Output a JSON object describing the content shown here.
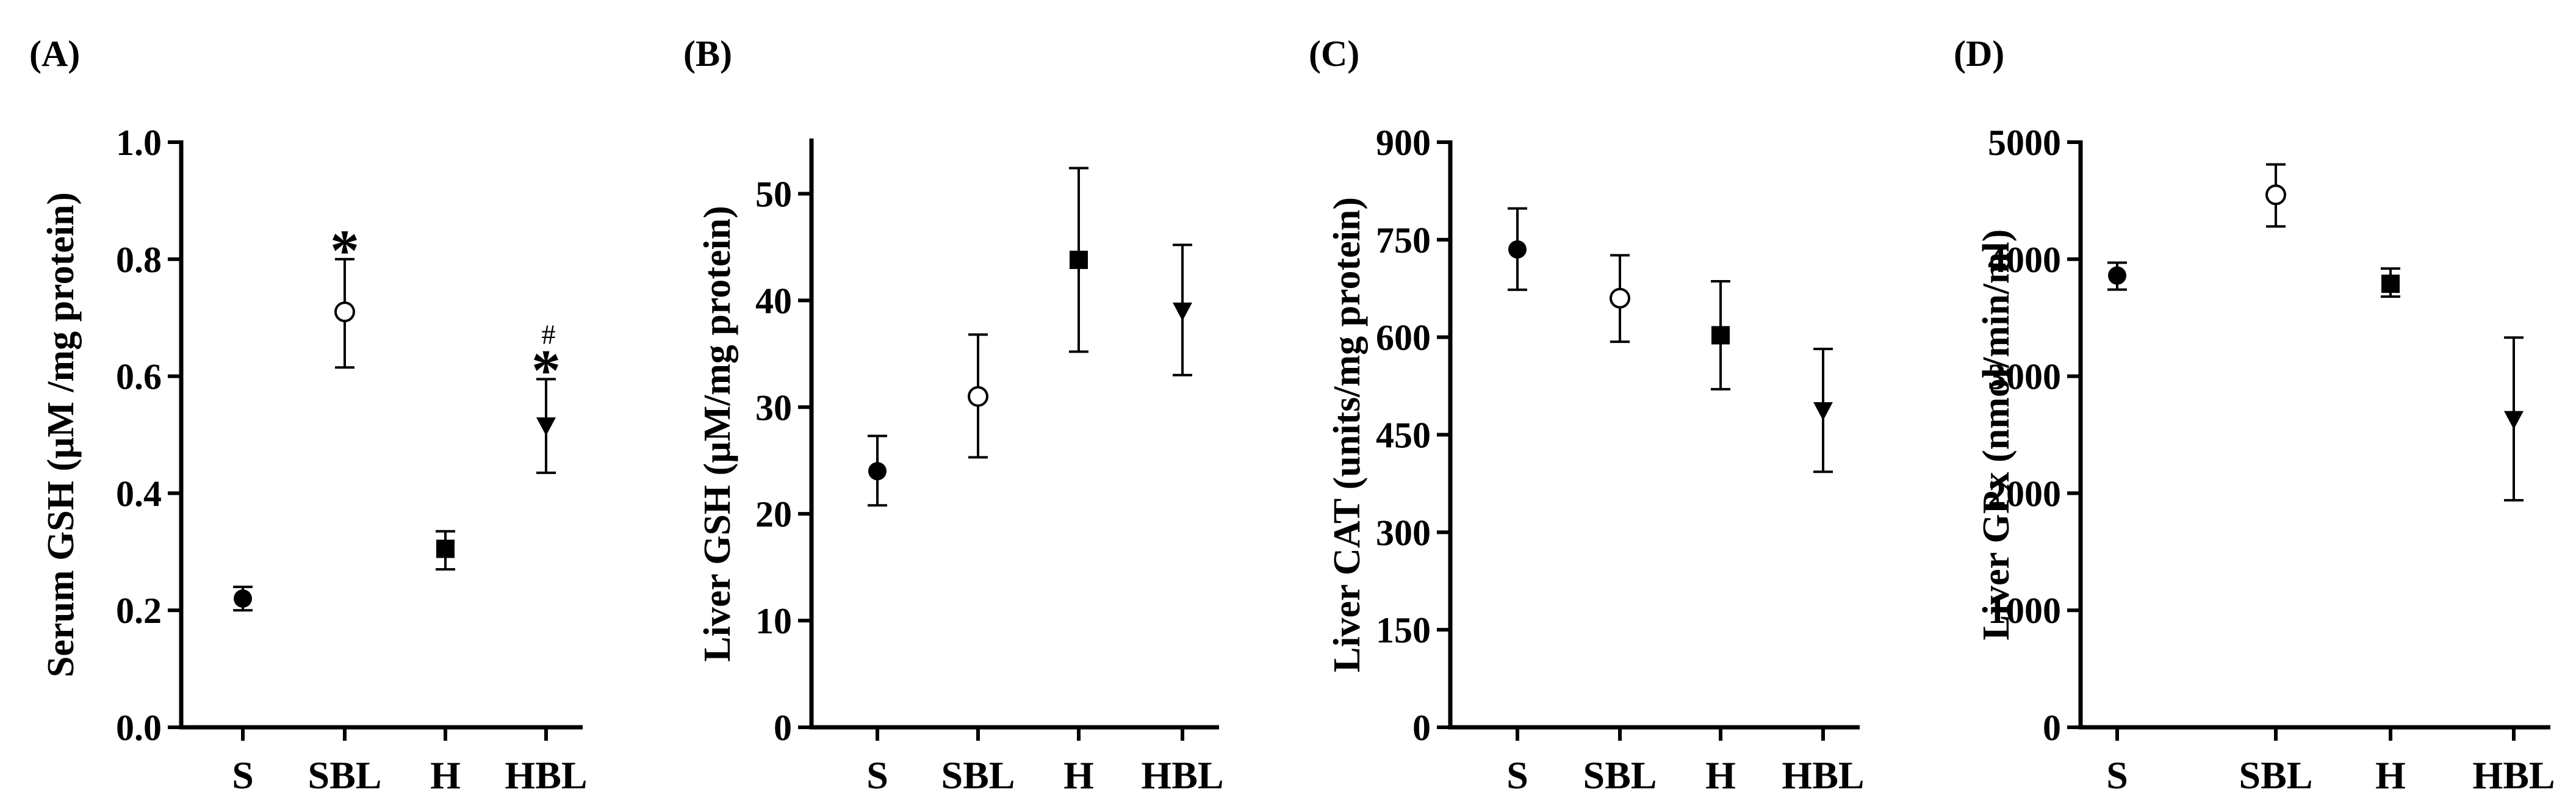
{
  "chart_data": [
    {
      "type": "scatter",
      "panel": "(A)",
      "ylabel": "Serum GSH (μM /mg protein)",
      "ylim": [
        0,
        1.0
      ],
      "yticks": [
        0.0,
        0.2,
        0.4,
        0.6,
        0.8,
        1.0
      ],
      "ytick_labels": [
        "0.0",
        "0.2",
        "0.4",
        "0.6",
        "0.8",
        "1.0"
      ],
      "categories": [
        "S",
        "SBL",
        "H",
        "HBL"
      ],
      "points": [
        {
          "category": "S",
          "value": 0.22,
          "err_low": 0.2,
          "err_high": 0.24,
          "marker": "circle-filled",
          "annotation": ""
        },
        {
          "category": "SBL",
          "value": 0.71,
          "err_low": 0.615,
          "err_high": 0.8,
          "marker": "circle-open",
          "annotation": "*"
        },
        {
          "category": "H",
          "value": 0.305,
          "err_low": 0.27,
          "err_high": 0.335,
          "marker": "square-filled",
          "annotation": ""
        },
        {
          "category": "HBL",
          "value": 0.515,
          "err_low": 0.435,
          "err_high": 0.595,
          "marker": "triangle-down-filled",
          "annotation": "*#"
        }
      ]
    },
    {
      "type": "scatter",
      "panel": "(B)",
      "ylabel": "Liver GSH (μM/mg protein)",
      "ylim": [
        0,
        55
      ],
      "yticks": [
        0,
        10,
        20,
        30,
        40,
        50
      ],
      "ytick_labels": [
        "0",
        "10",
        "20",
        "30",
        "40",
        "50"
      ],
      "categories": [
        "S",
        "SBL",
        "H",
        "HBL"
      ],
      "points": [
        {
          "category": "S",
          "value": 24,
          "err_low": 20.8,
          "err_high": 27.3,
          "marker": "circle-filled",
          "annotation": ""
        },
        {
          "category": "SBL",
          "value": 31,
          "err_low": 25.3,
          "err_high": 36.8,
          "marker": "circle-open",
          "annotation": ""
        },
        {
          "category": "H",
          "value": 43.8,
          "err_low": 35.2,
          "err_high": 52.4,
          "marker": "square-filled",
          "annotation": ""
        },
        {
          "category": "HBL",
          "value": 39,
          "err_low": 33,
          "err_high": 45.2,
          "marker": "triangle-down-filled",
          "annotation": ""
        }
      ]
    },
    {
      "type": "scatter",
      "panel": "(C)",
      "ylabel": "Liver CAT (units/mg protein)",
      "ylim": [
        0,
        900
      ],
      "yticks": [
        0,
        150,
        300,
        450,
        600,
        750,
        900
      ],
      "ytick_labels": [
        "0",
        "150",
        "300",
        "450",
        "600",
        "750",
        "900"
      ],
      "categories": [
        "S",
        "SBL",
        "H",
        "HBL"
      ],
      "points": [
        {
          "category": "S",
          "value": 735,
          "err_low": 673,
          "err_high": 798,
          "marker": "circle-filled",
          "annotation": ""
        },
        {
          "category": "SBL",
          "value": 660,
          "err_low": 593,
          "err_high": 726,
          "marker": "circle-open",
          "annotation": ""
        },
        {
          "category": "H",
          "value": 603,
          "err_low": 520,
          "err_high": 686,
          "marker": "square-filled",
          "annotation": ""
        },
        {
          "category": "HBL",
          "value": 487,
          "err_low": 393,
          "err_high": 582,
          "marker": "triangle-down-filled",
          "annotation": ""
        }
      ]
    },
    {
      "type": "scatter",
      "panel": "(D)",
      "ylabel": "Liver GPx (nmol/min/ml)",
      "ylim": [
        0,
        5000
      ],
      "yticks": [
        0,
        1000,
        2000,
        3000,
        4000,
        5000
      ],
      "ytick_labels": [
        "0",
        "1000",
        "2000",
        "3000",
        "4000",
        "5000"
      ],
      "categories": [
        "S",
        "SBL",
        "H",
        "HBL"
      ],
      "points": [
        {
          "category": "S",
          "value": 3860,
          "err_low": 3740,
          "err_high": 3970,
          "marker": "circle-filled",
          "annotation": ""
        },
        {
          "category": "SBL",
          "value": 4550,
          "err_low": 4280,
          "err_high": 4810,
          "marker": "circle-open",
          "annotation": ""
        },
        {
          "category": "H",
          "value": 3790,
          "err_low": 3680,
          "err_high": 3920,
          "marker": "square-filled",
          "annotation": ""
        },
        {
          "category": "HBL",
          "value": 2630,
          "err_low": 1940,
          "err_high": 3330,
          "marker": "triangle-down-filled",
          "annotation": ""
        }
      ]
    }
  ]
}
